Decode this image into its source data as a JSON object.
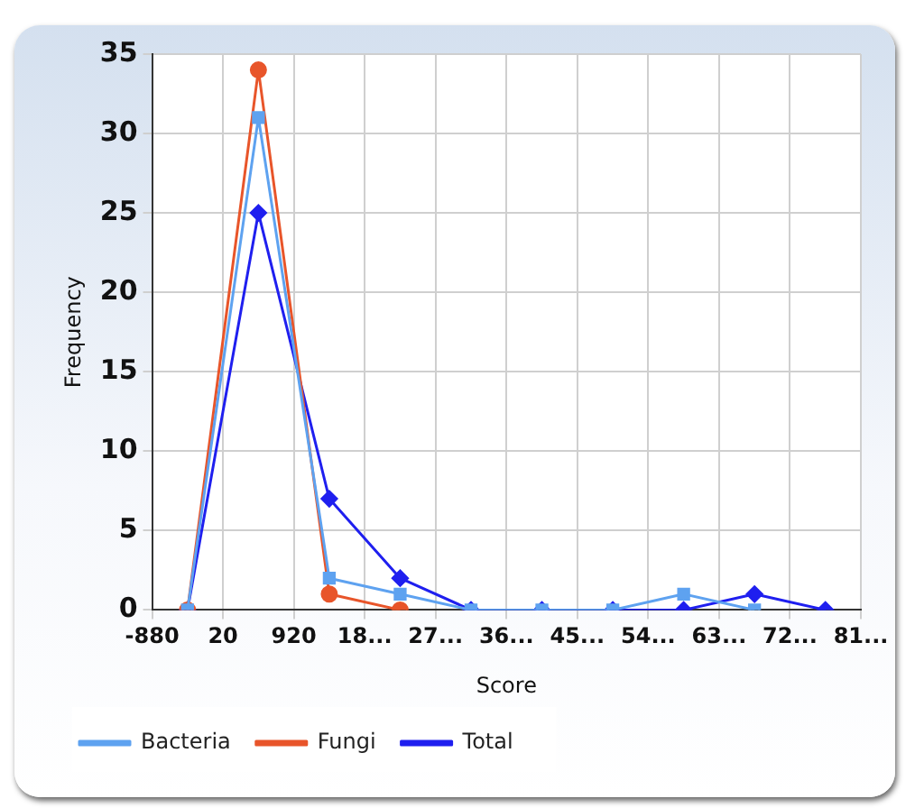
{
  "chart_data": {
    "type": "line",
    "xlabel": "Score",
    "ylabel": "Frequency",
    "x": [
      -430,
      470,
      1370,
      2270,
      3170,
      4070,
      4970,
      5870,
      6770,
      7670
    ],
    "xlim": [
      -880,
      8120
    ],
    "xticks": [
      -880,
      20,
      920,
      {
        "value": 1820,
        "label": "18..."
      },
      {
        "value": 2720,
        "label": "27..."
      },
      {
        "value": 3620,
        "label": "36..."
      },
      {
        "value": 4520,
        "label": "45..."
      },
      {
        "value": 5420,
        "label": "54..."
      },
      {
        "value": 6320,
        "label": "63..."
      },
      {
        "value": 7220,
        "label": "72..."
      },
      {
        "value": 8120,
        "label": "81..."
      }
    ],
    "ylim": [
      0,
      35
    ],
    "yticks": [
      0,
      5,
      10,
      15,
      20,
      25,
      30,
      35
    ],
    "series": [
      {
        "name": "Bacteria",
        "color": "#5ea2f0",
        "marker": "square",
        "values": [
          0,
          31,
          2,
          1,
          0,
          0,
          0,
          1,
          0,
          null
        ]
      },
      {
        "name": "Fungi",
        "color": "#e8552a",
        "marker": "circle",
        "values": [
          0,
          34,
          1,
          0,
          null,
          null,
          null,
          null,
          null,
          null
        ]
      },
      {
        "name": "Total",
        "color": "#1f1fef",
        "marker": "diamond",
        "values": [
          0,
          25,
          7,
          2,
          0,
          0,
          0,
          0,
          1,
          0
        ]
      }
    ],
    "grid": true,
    "legend": "bottom"
  }
}
